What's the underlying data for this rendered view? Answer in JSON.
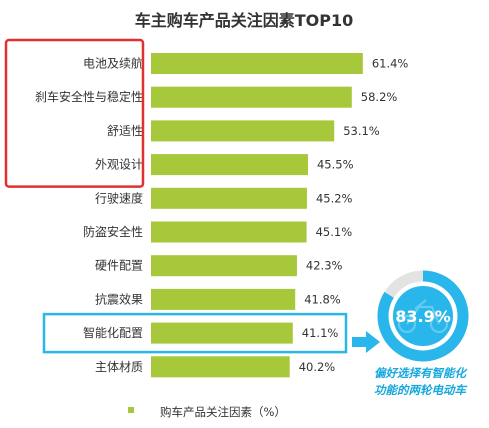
{
  "chart_data": {
    "type": "bar",
    "orientation": "horizontal",
    "title": "车主购车产品关注因素TOP10",
    "categories": [
      "电池及续航",
      "刹车安全性与稳定性",
      "舒适性",
      "外观设计",
      "行驶速度",
      "防盗安全性",
      "硬件配置",
      "抗震效果",
      "智能化配置",
      "主体材质"
    ],
    "values": [
      61.4,
      58.2,
      53.1,
      45.5,
      45.2,
      45.1,
      42.3,
      41.8,
      41.1,
      40.2
    ],
    "value_labels": [
      "61.4%",
      "58.2%",
      "53.1%",
      "45.5%",
      "45.2%",
      "45.1%",
      "42.3%",
      "41.8%",
      "41.1%",
      "40.2%"
    ],
    "xlim": [
      0,
      70
    ],
    "legend": "购车产品关注因素（%）",
    "bar_color": "#a6c83a",
    "highlight_box_color": "#e03030",
    "highlight_categories_red": [
      "电池及续航",
      "刹车安全性与稳定性",
      "舒适性",
      "外观设计"
    ],
    "highlight_box_color_blue": "#2ab6e6",
    "highlight_categories_blue": [
      "智能化配置"
    ],
    "callout": {
      "value": "83.9%",
      "fraction": 0.839,
      "caption_line1": "偏好选择有智能化",
      "caption_line2": "功能的两轮电动车",
      "ring_color": "#29b6ea",
      "track_color": "#e3e3e3",
      "icon": "motorcycle-icon"
    }
  }
}
